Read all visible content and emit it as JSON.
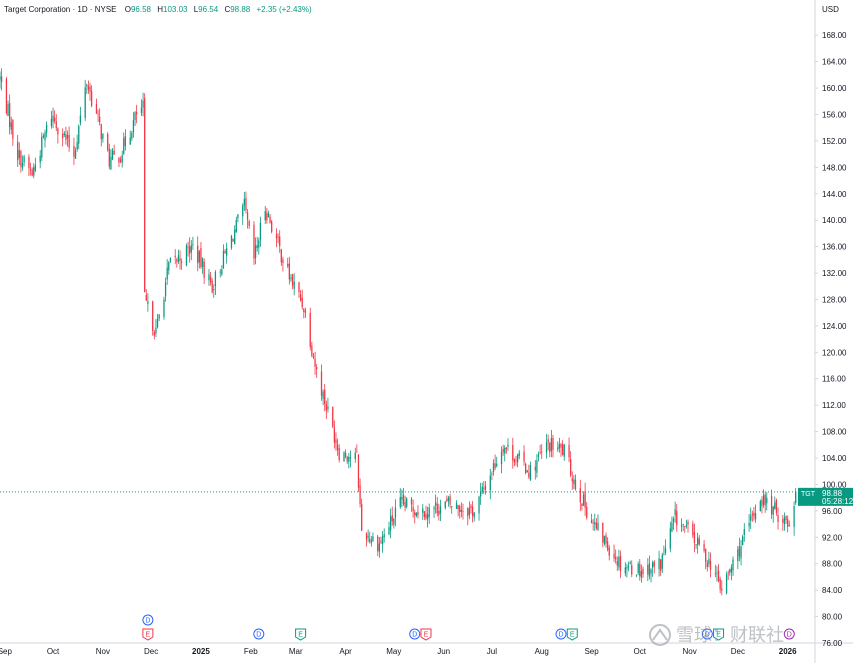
{
  "header": {
    "symbol_line": "Target Corporation · 1D · NYSE",
    "o_label": "O",
    "o_value": "96.58",
    "h_label": "H",
    "h_value": "103.03",
    "l_label": "L",
    "l_value": "96.54",
    "c_label": "C",
    "c_value": "98.88",
    "change": "+2.35 (+2.43%)"
  },
  "currency_label": "USD",
  "last_price_tag": {
    "ticker": "TGT",
    "price": "98.88",
    "countdown": "05:28:12"
  },
  "colors": {
    "up": "#089981",
    "down": "#f23645",
    "dividend": "#2962ff",
    "earnings_down": "#f23645",
    "earnings_up": "#089981",
    "split": "#9c27b0"
  },
  "event_badges": [
    {
      "date": "2024-11-29",
      "rows": [
        {
          "letter": "D",
          "kind": "dividend"
        },
        {
          "letter": "E",
          "kind": "earnings_down"
        }
      ]
    },
    {
      "date": "2025-02-06",
      "rows": [
        {
          "letter": "D",
          "kind": "dividend"
        }
      ]
    },
    {
      "date": "2025-03-04",
      "rows": [
        {
          "letter": "E",
          "kind": "earnings_up"
        }
      ]
    },
    {
      "date": "2025-05-14",
      "rows": [
        {
          "letter": "D",
          "kind": "dividend"
        }
      ]
    },
    {
      "date": "2025-05-21",
      "rows": [
        {
          "letter": "E",
          "kind": "earnings_down"
        }
      ]
    },
    {
      "date": "2025-08-13",
      "rows": [
        {
          "letter": "D",
          "kind": "dividend"
        }
      ]
    },
    {
      "date": "2025-08-20",
      "rows": [
        {
          "letter": "E",
          "kind": "earnings_up"
        }
      ]
    },
    {
      "date": "2025-11-12",
      "rows": [
        {
          "letter": "D",
          "kind": "dividend"
        }
      ]
    },
    {
      "date": "2025-11-19",
      "rows": [
        {
          "letter": "E",
          "kind": "earnings_up"
        }
      ]
    },
    {
      "date": "2026-01-02",
      "rows": [
        {
          "letter": "D",
          "kind": "split"
        }
      ]
    }
  ],
  "watermark": "雪球：财联社",
  "chart_data": {
    "type": "candlestick",
    "title": "Target Corporation · 1D · NYSE",
    "ylabel": "USD",
    "ylim": [
      76,
      170
    ],
    "y_ticks": [
      76,
      80,
      84,
      88,
      92,
      96,
      100,
      104,
      108,
      112,
      116,
      120,
      124,
      128,
      132,
      136,
      140,
      144,
      148,
      152,
      156,
      160,
      164,
      168
    ],
    "xlim": [
      "2024-08-29",
      "2026-01-18"
    ],
    "x_ticks": [
      {
        "date": "2024-09-01",
        "label": "Sep"
      },
      {
        "date": "2024-10-01",
        "label": "Oct"
      },
      {
        "date": "2024-11-01",
        "label": "Nov"
      },
      {
        "date": "2024-12-01",
        "label": "Dec"
      },
      {
        "date": "2025-01-01",
        "label": "2025",
        "bold": true
      },
      {
        "date": "2025-02-01",
        "label": "Feb"
      },
      {
        "date": "2025-03-01",
        "label": "Mar"
      },
      {
        "date": "2025-04-01",
        "label": "Apr"
      },
      {
        "date": "2025-05-01",
        "label": "May"
      },
      {
        "date": "2025-06-01",
        "label": "Jun"
      },
      {
        "date": "2025-07-01",
        "label": "Jul"
      },
      {
        "date": "2025-08-01",
        "label": "Aug"
      },
      {
        "date": "2025-09-01",
        "label": "Sep"
      },
      {
        "date": "2025-10-01",
        "label": "Oct"
      },
      {
        "date": "2025-11-01",
        "label": "Nov"
      },
      {
        "date": "2025-12-01",
        "label": "Dec"
      },
      {
        "date": "2026-01-01",
        "label": "2026",
        "bold": true
      }
    ],
    "grid": false,
    "last_close": 98.88,
    "anchors": [
      [
        "2024-08-29",
        161.5
      ],
      [
        "2024-09-09",
        150
      ],
      [
        "2024-09-18",
        147
      ],
      [
        "2024-09-30",
        156
      ],
      [
        "2024-10-14",
        150
      ],
      [
        "2024-10-22",
        161
      ],
      [
        "2024-11-05",
        149
      ],
      [
        "2024-11-12",
        150
      ],
      [
        "2024-11-22",
        156
      ],
      [
        "2024-11-26",
        157
      ],
      [
        "2024-11-27",
        128
      ],
      [
        "2024-12-04",
        123
      ],
      [
        "2024-12-12",
        133
      ],
      [
        "2024-12-27",
        136
      ],
      [
        "2025-01-08",
        130
      ],
      [
        "2025-01-28",
        142
      ],
      [
        "2025-02-03",
        134
      ],
      [
        "2025-02-10",
        142
      ],
      [
        "2025-02-24",
        132
      ],
      [
        "2025-03-06",
        127
      ],
      [
        "2025-03-14",
        117
      ],
      [
        "2025-03-28",
        105
      ],
      [
        "2025-04-08",
        104
      ],
      [
        "2025-04-11",
        93
      ],
      [
        "2025-04-22",
        91
      ],
      [
        "2025-05-05",
        97
      ],
      [
        "2025-05-20",
        96
      ],
      [
        "2025-06-04",
        97
      ],
      [
        "2025-06-20",
        96
      ],
      [
        "2025-07-08",
        106
      ],
      [
        "2025-07-25",
        102
      ],
      [
        "2025-08-05",
        106
      ],
      [
        "2025-08-15",
        105
      ],
      [
        "2025-08-22",
        100
      ],
      [
        "2025-09-02",
        94
      ],
      [
        "2025-09-19",
        88
      ],
      [
        "2025-10-03",
        87
      ],
      [
        "2025-10-14",
        88
      ],
      [
        "2025-10-23",
        95
      ],
      [
        "2025-11-03",
        92
      ],
      [
        "2025-11-14",
        88
      ],
      [
        "2025-11-21",
        84
      ],
      [
        "2025-12-05",
        92
      ],
      [
        "2025-12-15",
        98
      ],
      [
        "2026-01-02",
        94
      ],
      [
        "2026-01-06",
        98.88
      ]
    ]
  }
}
